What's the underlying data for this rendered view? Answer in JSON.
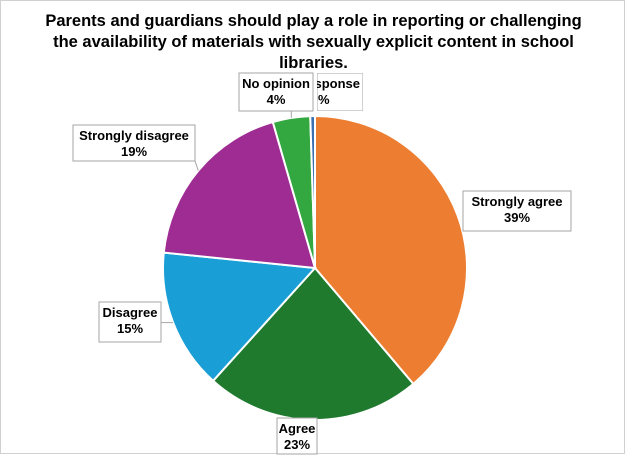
{
  "chart_data": {
    "type": "pie",
    "title": "Parents and guardians should play a role in reporting or challenging the availability of materials with sexually explicit content in school libraries.",
    "slices": [
      {
        "label": "Strongly agree",
        "value": 39,
        "pct_label": "39%",
        "color": "#ED7D31"
      },
      {
        "label": "Agree",
        "value": 23,
        "pct_label": "23%",
        "color": "#1F7A2E"
      },
      {
        "label": "Disagree",
        "value": 15,
        "pct_label": "15%",
        "color": "#199FD6"
      },
      {
        "label": "Strongly disagree",
        "value": 19,
        "pct_label": "19%",
        "color": "#9E2C93"
      },
      {
        "label": "No opinion",
        "value": 4,
        "pct_label": "4%",
        "color": "#34A840"
      },
      {
        "label": "No response",
        "value": 0.5,
        "pct_label": "%",
        "color": "#3A6FB0"
      }
    ],
    "legend": "none",
    "data_labels": "callout"
  }
}
